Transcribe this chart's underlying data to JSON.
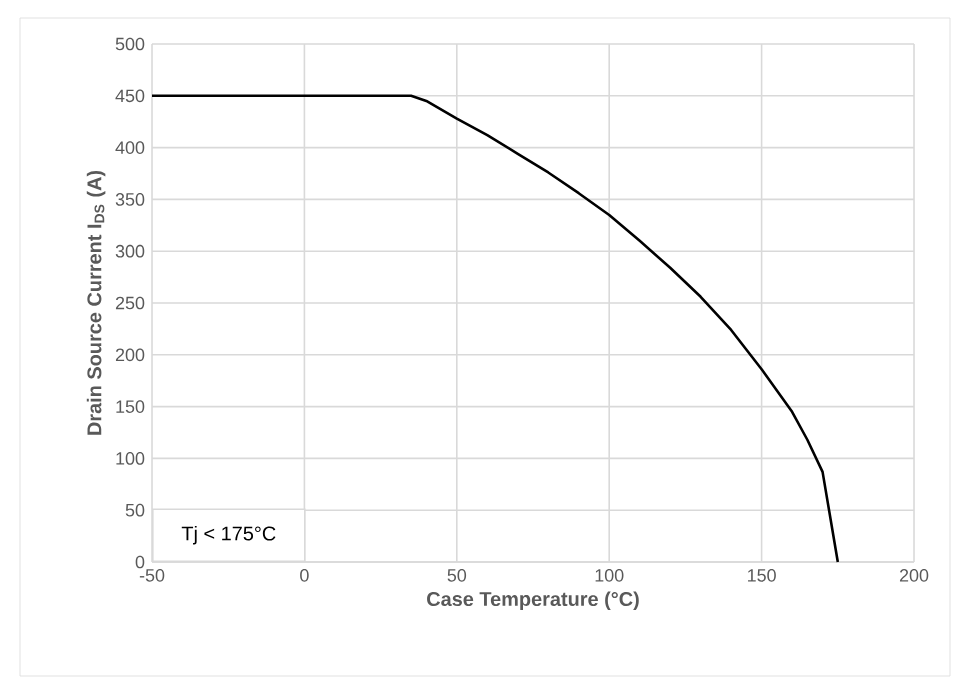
{
  "chart_data": {
    "type": "line",
    "xlabel": "Case Temperature (°C)",
    "ylabel": "Drain Source Current I$_{DS}$ (A)",
    "annotations": [
      "Tj < 175°C"
    ],
    "x": [
      -50,
      35,
      40,
      50,
      60,
      70,
      80,
      90,
      100,
      110,
      120,
      130,
      140,
      150,
      160,
      165,
      170,
      175
    ],
    "series": [
      {
        "color": "#000000",
        "values": [
          450,
          450,
          445,
          428,
          412,
          394,
          376,
          356,
          335,
          310,
          284,
          256,
          224,
          186,
          145,
          118,
          87,
          0
        ]
      }
    ],
    "xlim": [
      -50,
      200
    ],
    "ylim": [
      0,
      500
    ],
    "xticks": [
      -50,
      0,
      50,
      100,
      150,
      200
    ],
    "yticks": [
      0,
      50,
      100,
      150,
      200,
      250,
      300,
      350,
      400,
      450,
      500
    ],
    "grid": true,
    "marker": "none",
    "line_style": "solid"
  }
}
